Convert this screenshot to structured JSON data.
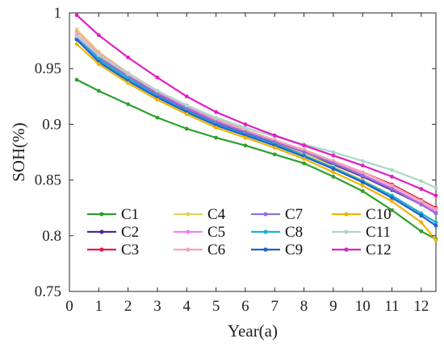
{
  "chart_data": {
    "type": "line",
    "xlabel": "Year(a)",
    "ylabel": "SOH(%)",
    "xlim": [
      0,
      12.5
    ],
    "ylim": [
      0.75,
      1.0
    ],
    "xticks": [
      0,
      1,
      2,
      3,
      4,
      5,
      6,
      7,
      8,
      9,
      10,
      11,
      12
    ],
    "yticks": [
      0.75,
      0.8,
      0.85,
      0.9,
      0.95,
      1.0
    ],
    "ytick_labels": [
      "0.75",
      "0.8",
      "0.85",
      "0.9",
      "0.95",
      "1"
    ],
    "grid": false,
    "legend_position": "lower-left",
    "legend_columns": 4,
    "x": [
      0.25,
      1,
      2,
      3,
      4,
      5,
      6,
      7,
      8,
      9,
      10,
      11,
      12,
      12.5
    ],
    "series": [
      {
        "name": "C1",
        "color": "#2ca02c",
        "values": [
          0.94,
          0.93,
          0.918,
          0.906,
          0.896,
          0.888,
          0.881,
          0.873,
          0.865,
          0.853,
          0.84,
          0.823,
          0.804,
          0.797
        ]
      },
      {
        "name": "C2",
        "color": "#4b2c92",
        "values": [
          0.976,
          0.958,
          0.941,
          0.926,
          0.913,
          0.901,
          0.892,
          0.883,
          0.874,
          0.864,
          0.853,
          0.841,
          0.828,
          0.821
        ]
      },
      {
        "name": "C3",
        "color": "#e6194b",
        "values": [
          0.978,
          0.961,
          0.944,
          0.928,
          0.915,
          0.903,
          0.894,
          0.885,
          0.877,
          0.867,
          0.857,
          0.846,
          0.832,
          0.825
        ]
      },
      {
        "name": "C4",
        "color": "#e8d35a",
        "values": [
          0.985,
          0.965,
          0.946,
          0.93,
          0.916,
          0.904,
          0.894,
          0.884,
          0.874,
          0.862,
          0.85,
          0.836,
          0.82,
          0.812
        ]
      },
      {
        "name": "C5",
        "color": "#ee82ee",
        "values": [
          0.98,
          0.962,
          0.945,
          0.929,
          0.916,
          0.904,
          0.894,
          0.885,
          0.876,
          0.866,
          0.855,
          0.843,
          0.829,
          0.822
        ]
      },
      {
        "name": "C6",
        "color": "#f4a6b2",
        "values": [
          0.983,
          0.964,
          0.946,
          0.93,
          0.917,
          0.905,
          0.895,
          0.886,
          0.877,
          0.867,
          0.857,
          0.845,
          0.831,
          0.824
        ]
      },
      {
        "name": "C7",
        "color": "#9370db",
        "values": [
          0.978,
          0.96,
          0.943,
          0.927,
          0.914,
          0.902,
          0.893,
          0.884,
          0.875,
          0.865,
          0.854,
          0.842,
          0.828,
          0.82
        ]
      },
      {
        "name": "C8",
        "color": "#17b2d4",
        "values": [
          0.977,
          0.958,
          0.941,
          0.925,
          0.912,
          0.9,
          0.891,
          0.882,
          0.872,
          0.861,
          0.849,
          0.836,
          0.82,
          0.812
        ]
      },
      {
        "name": "C9",
        "color": "#1f62c8",
        "values": [
          0.976,
          0.956,
          0.939,
          0.924,
          0.911,
          0.899,
          0.89,
          0.881,
          0.871,
          0.86,
          0.848,
          0.834,
          0.818,
          0.809
        ]
      },
      {
        "name": "C10",
        "color": "#f0b400",
        "values": [
          0.972,
          0.954,
          0.937,
          0.922,
          0.909,
          0.897,
          0.888,
          0.879,
          0.869,
          0.857,
          0.845,
          0.831,
          0.812,
          0.796
        ]
      },
      {
        "name": "C11",
        "color": "#a8d8c8",
        "values": [
          0.979,
          0.962,
          0.945,
          0.93,
          0.917,
          0.906,
          0.897,
          0.889,
          0.882,
          0.875,
          0.867,
          0.859,
          0.849,
          0.843
        ]
      },
      {
        "name": "C12",
        "color": "#e020c0",
        "values": [
          0.998,
          0.98,
          0.96,
          0.942,
          0.925,
          0.911,
          0.9,
          0.89,
          0.881,
          0.872,
          0.863,
          0.853,
          0.842,
          0.836
        ]
      }
    ]
  }
}
